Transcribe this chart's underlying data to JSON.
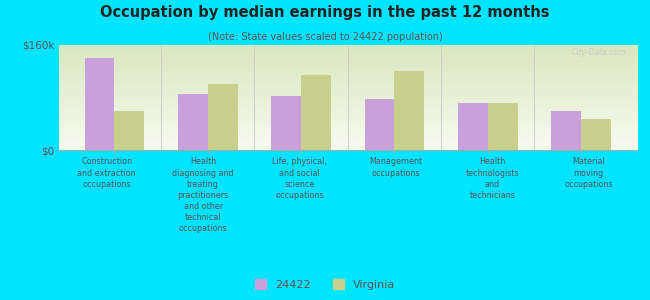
{
  "title": "Occupation by median earnings in the past 12 months",
  "subtitle": "(Note: State values scaled to 24422 population)",
  "categories": [
    "Construction\nand extraction\noccupations",
    "Health\ndiagnosing and\ntreating\npractitioners\nand other\ntechnical\noccupations",
    "Life, physical,\nand social\nscience\noccupations",
    "Management\noccupations",
    "Health\ntechnologists\nand\ntechnicians",
    "Material\nmoving\noccupations"
  ],
  "values_24422": [
    140000,
    85000,
    83000,
    78000,
    72000,
    60000
  ],
  "values_virginia": [
    60000,
    100000,
    115000,
    120000,
    72000,
    48000
  ],
  "color_24422": "#c9a0dc",
  "color_virginia": "#c8d08c",
  "background_outer": "#00e5ff",
  "background_inner_top": "#d8e8c0",
  "background_inner_bottom": "#f0f4e8",
  "ymax": 160000,
  "ylabel_tick": "$160k",
  "ylabel_zero": "$0",
  "legend_label_24422": "24422",
  "legend_label_virginia": "Virginia",
  "watermark": "City-Data.com",
  "bar_width": 0.32
}
